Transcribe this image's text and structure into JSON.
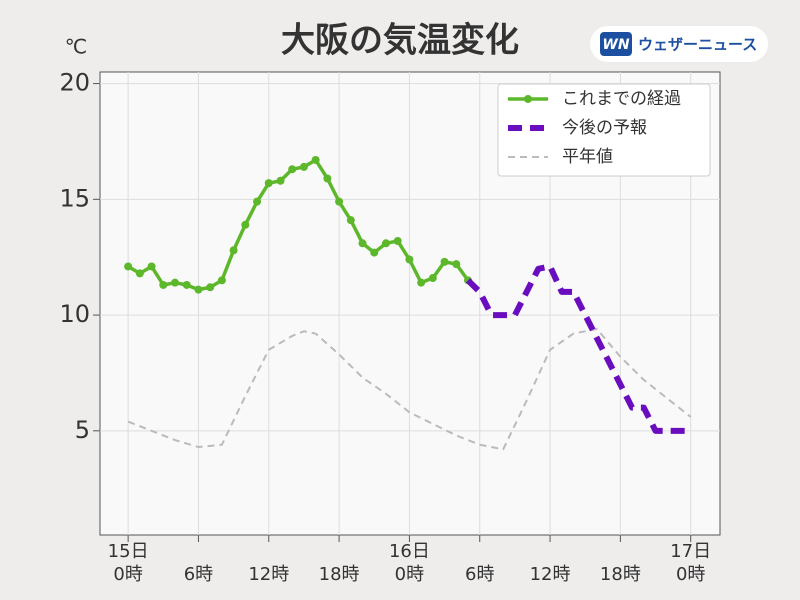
{
  "chart_data": {
    "type": "line",
    "title": "大阪の気温変化",
    "y_label": "℃",
    "logo": {
      "mark": "WN",
      "text": "ウェザーニュース"
    },
    "xlim": [
      -2.4,
      50.5
    ],
    "ylim": [
      0.5,
      20.5
    ],
    "yticks": [
      5,
      10,
      15,
      20
    ],
    "xticks": [
      {
        "value": 0,
        "label": "0時"
      },
      {
        "value": 6,
        "label": "6時"
      },
      {
        "value": 12,
        "label": "12時"
      },
      {
        "value": 18,
        "label": "18時"
      },
      {
        "value": 24,
        "label": "0時"
      },
      {
        "value": 30,
        "label": "6時"
      },
      {
        "value": 36,
        "label": "12時"
      },
      {
        "value": 42,
        "label": "18時"
      },
      {
        "value": 48,
        "label": "0時"
      }
    ],
    "date_labels": [
      {
        "value": 0,
        "label": "15日"
      },
      {
        "value": 24,
        "label": "16日"
      },
      {
        "value": 48,
        "label": "17日"
      }
    ],
    "grid": true,
    "legend": "upper right",
    "series": [
      {
        "name": "これまでの経過",
        "color": "#5cb82a",
        "linestyle": "solid",
        "marker": true,
        "x": [
          0,
          1,
          2,
          3,
          4,
          5,
          6,
          7,
          8,
          9,
          10,
          11,
          12,
          13,
          14,
          15,
          16,
          17,
          18,
          19,
          20,
          21,
          22,
          23,
          24,
          25,
          26,
          27,
          28,
          29
        ],
        "values": [
          12.1,
          11.8,
          12.1,
          11.3,
          11.4,
          11.3,
          11.1,
          11.2,
          11.5,
          12.8,
          13.9,
          14.9,
          15.7,
          15.8,
          16.3,
          16.4,
          16.7,
          15.9,
          14.9,
          14.1,
          13.1,
          12.7,
          13.1,
          13.2,
          12.4,
          11.4,
          11.6,
          12.3,
          12.2,
          11.5
        ]
      },
      {
        "name": "今後の予報",
        "color": "#6a0dbf",
        "linestyle": "dashed",
        "marker": false,
        "x": [
          29,
          30,
          31,
          32,
          33,
          34,
          35,
          36,
          37,
          38,
          39,
          40,
          41,
          42,
          43,
          44,
          45,
          46,
          47,
          48
        ],
        "values": [
          11.5,
          11.0,
          10.0,
          10.0,
          10.0,
          11.0,
          12.0,
          12.1,
          11.0,
          11.0,
          10.0,
          9.0,
          8.0,
          7.0,
          6.0,
          6.0,
          5.0,
          5.0,
          5.0,
          5.0
        ]
      },
      {
        "name": "平年値",
        "color": "#bbbbbb",
        "linestyle": "thin-dashed",
        "marker": false,
        "x": [
          0,
          2,
          4,
          6,
          8,
          10,
          12,
          14,
          15,
          16,
          18,
          20,
          22,
          24,
          26,
          28,
          30,
          32,
          34,
          36,
          38,
          40,
          42,
          44,
          46,
          48
        ],
        "values": [
          5.4,
          5.0,
          4.6,
          4.3,
          4.4,
          6.5,
          8.5,
          9.1,
          9.3,
          9.2,
          8.3,
          7.3,
          6.6,
          5.8,
          5.3,
          4.8,
          4.4,
          4.2,
          6.3,
          8.5,
          9.2,
          9.4,
          8.2,
          7.2,
          6.4,
          5.6
        ]
      }
    ]
  }
}
